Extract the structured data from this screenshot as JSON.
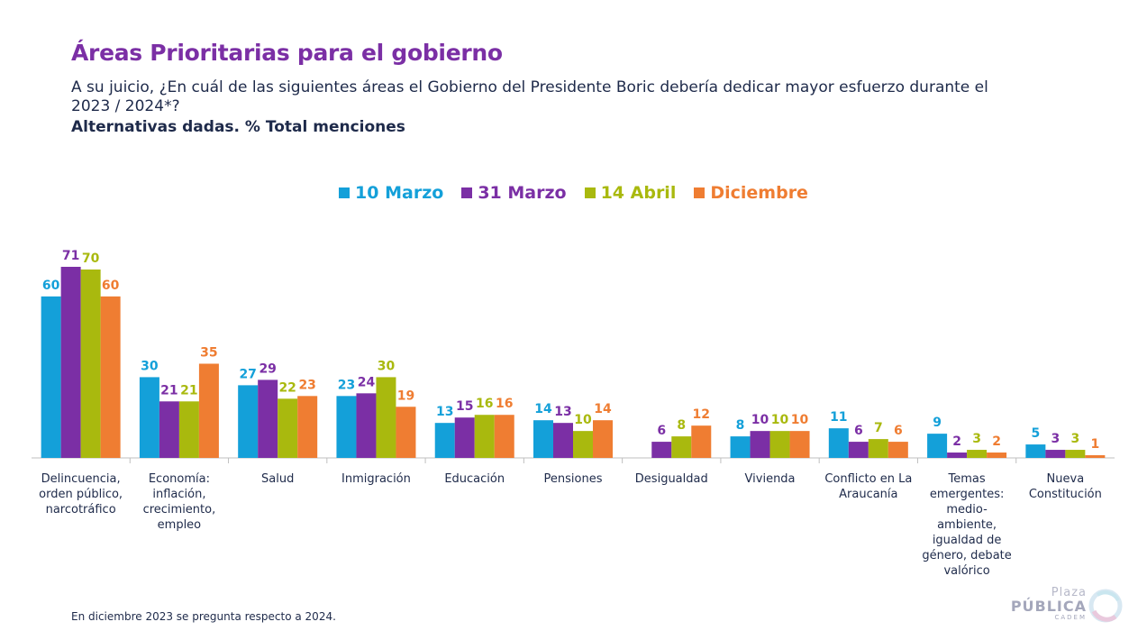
{
  "header": {
    "title": "Áreas Prioritarias para el gobierno",
    "subtitle": "A su juicio, ¿En cuál de las siguientes áreas el Gobierno del Presidente Boric debería dedicar mayor esfuerzo durante el 2023 / 2024*?",
    "subtitle2": "Alternativas dadas. % Total menciones"
  },
  "footnote": "En diciembre 2023 se pregunta respecto a 2024.",
  "logo": {
    "line1": "Plaza",
    "line2": "PÚBLICA",
    "line3": "CADEM"
  },
  "chart_data": {
    "type": "bar",
    "categories": [
      [
        "Delincuencia,",
        "orden público,",
        "narcotráfico"
      ],
      [
        "Economía:",
        "inflación,",
        "crecimiento,",
        "empleo"
      ],
      [
        "Salud"
      ],
      [
        "Inmigración"
      ],
      [
        "Educación"
      ],
      [
        "Pensiones"
      ],
      [
        "Desigualdad"
      ],
      [
        "Vivienda"
      ],
      [
        "Conflicto en La",
        "Araucanía"
      ],
      [
        "Temas",
        "emergentes:",
        "medio-",
        "ambiente,",
        "igualdad de",
        "género, debate",
        "valórico"
      ],
      [
        "Nueva",
        "Constitución"
      ]
    ],
    "series": [
      {
        "name": "10 Marzo",
        "color": "#14a0d9",
        "values": [
          60,
          30,
          27,
          23,
          13,
          14,
          null,
          8,
          11,
          9,
          5
        ]
      },
      {
        "name": "31 Marzo",
        "color": "#7b2fa5",
        "values": [
          71,
          21,
          29,
          24,
          15,
          13,
          6,
          10,
          6,
          2,
          3
        ]
      },
      {
        "name": "14 Abril",
        "color": "#a9b90e",
        "values": [
          70,
          21,
          22,
          30,
          16,
          10,
          8,
          10,
          7,
          3,
          3
        ]
      },
      {
        "name": "Diciembre",
        "color": "#ef7d32",
        "values": [
          60,
          35,
          23,
          19,
          16,
          14,
          12,
          10,
          6,
          2,
          1
        ]
      }
    ],
    "ylim": [
      0,
      75
    ],
    "legend_position": "top-center",
    "grid": false
  }
}
